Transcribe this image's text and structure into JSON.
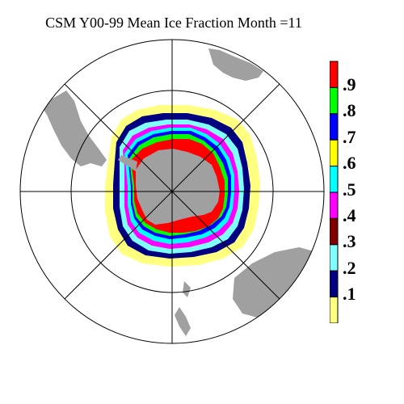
{
  "title": "CSM Y00-99 Mean Ice Fraction Month =11",
  "legend": {
    "levels": [
      {
        "label": ".9",
        "color": "#ff0000"
      },
      {
        "label": ".8",
        "color": "#00ff00"
      },
      {
        "label": ".7",
        "color": "#0000ff"
      },
      {
        "label": ".6",
        "color": "#ffff00"
      },
      {
        "label": ".5",
        "color": "#00ffff"
      },
      {
        "label": ".4",
        "color": "#ff00ff"
      },
      {
        "label": ".3",
        "color": "#800000"
      },
      {
        "label": ".2",
        "color": "#80ffff"
      },
      {
        "label": ".1",
        "color": "#000080"
      },
      {
        "label": "",
        "color": "#ffff80"
      }
    ]
  },
  "colors": {
    "land": "#a0a0a0",
    "grid": "#000000",
    "background": "#ffffff"
  }
}
